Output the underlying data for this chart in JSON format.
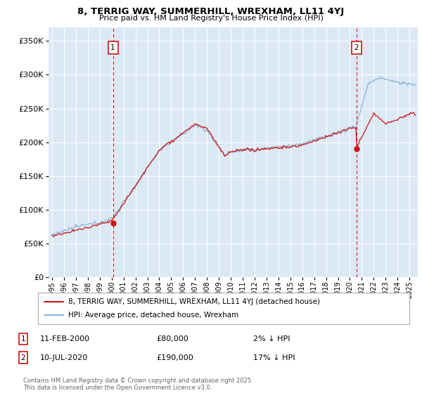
{
  "title_line1": "8, TERRIG WAY, SUMMERHILL, WREXHAM, LL11 4YJ",
  "title_line2": "Price paid vs. HM Land Registry's House Price Index (HPI)",
  "ylim": [
    0,
    370000
  ],
  "yticks": [
    0,
    50000,
    100000,
    150000,
    200000,
    250000,
    300000,
    350000
  ],
  "plot_bg_color": "#dce9f5",
  "grid_color": "#ffffff",
  "hpi_line_color": "#8ab4d4",
  "price_line_color": "#cc1111",
  "marker1_x": 2000.11,
  "marker1_price": 80000,
  "marker2_x": 2020.54,
  "marker2_price": 190000,
  "legend_label1": "8, TERRIG WAY, SUMMERHILL, WREXHAM, LL11 4YJ (detached house)",
  "legend_label2": "HPI: Average price, detached house, Wrexham",
  "annotation1_date": "11-FEB-2000",
  "annotation1_price": "£80,000",
  "annotation1_pct": "2% ↓ HPI",
  "annotation2_date": "10-JUL-2020",
  "annotation2_price": "£190,000",
  "annotation2_pct": "17% ↓ HPI",
  "footnote": "Contains HM Land Registry data © Crown copyright and database right 2025.\nThis data is licensed under the Open Government Licence v3.0.",
  "xstart": 1994.7,
  "xend": 2025.7
}
